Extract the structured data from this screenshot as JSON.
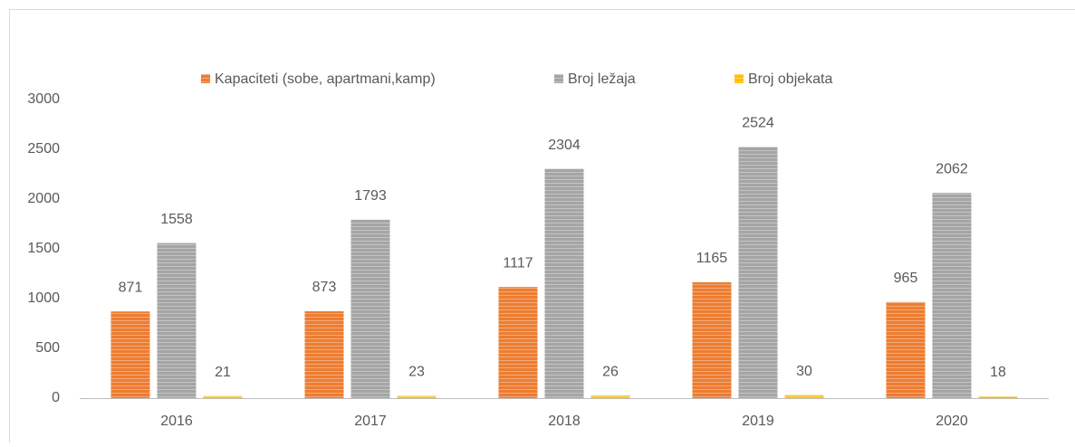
{
  "chart_data": {
    "type": "bar",
    "categories": [
      "2016",
      "2017",
      "2018",
      "2019",
      "2020"
    ],
    "series": [
      {
        "name": "Kapaciteti (sobe, apartmani,kamp)",
        "color": "#ed7d31",
        "values": [
          871,
          873,
          1117,
          1165,
          965
        ]
      },
      {
        "name": "Broj ležaja",
        "color": "#a5a5a5",
        "values": [
          1558,
          1793,
          2304,
          2524,
          2062
        ]
      },
      {
        "name": "Broj objekata",
        "color": "#ffc000",
        "values": [
          21,
          23,
          26,
          30,
          18
        ]
      }
    ],
    "ylim": [
      0,
      3000
    ],
    "yticks": [
      0,
      500,
      1000,
      1500,
      2000,
      2500,
      3000
    ],
    "grid": false,
    "legend": "top"
  }
}
